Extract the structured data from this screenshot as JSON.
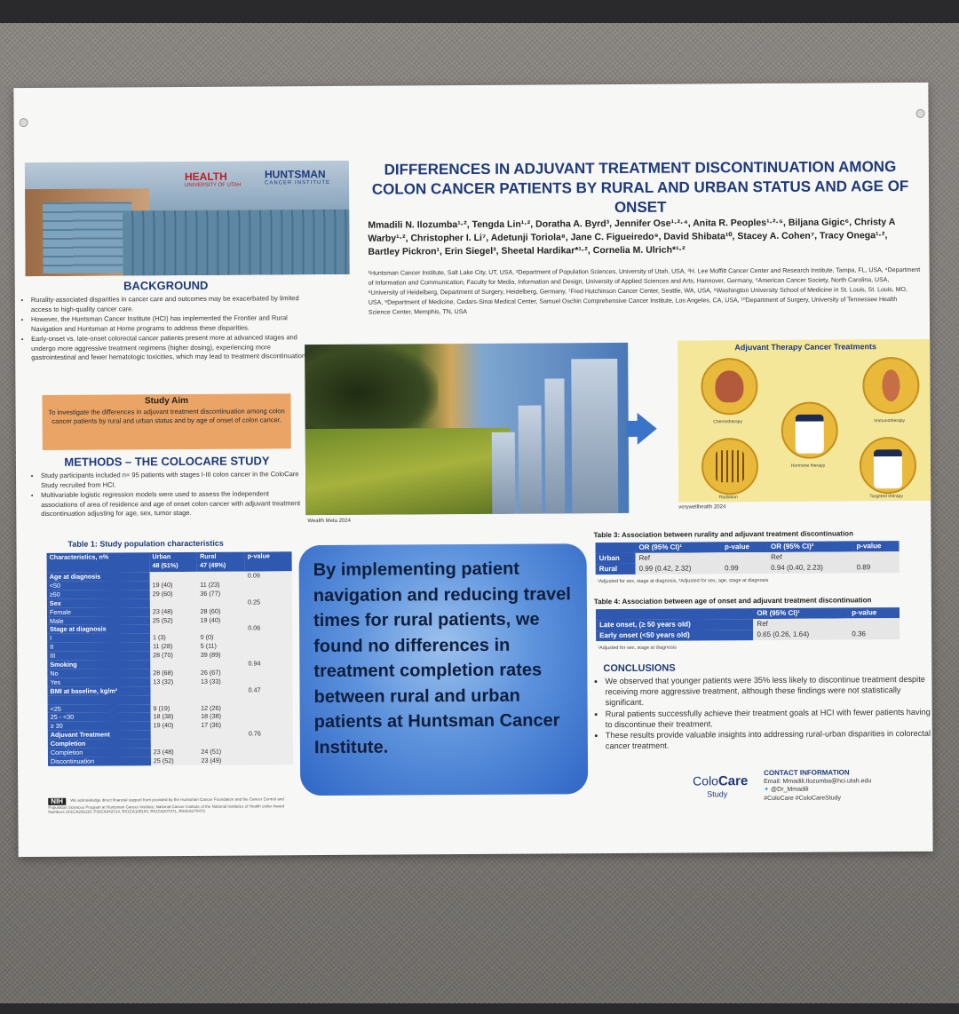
{
  "title": "DIFFERENCES IN ADJUVANT TREATMENT DISCONTINUATION AMONG COLON CANCER PATIENTS BY RURAL AND URBAN STATUS AND AGE OF ONSET",
  "logos": {
    "health": "HEALTH",
    "health_sub": "UNIVERSITY OF UTAH",
    "huntsman": "HUNTSMAN",
    "huntsman_sub": "CANCER INSTITUTE"
  },
  "authors": "Mmadili N. Ilozumba¹·², Tengda Lin¹·², Doratha A. Byrd³, Jennifer Ose¹·²·⁴, Anita R. Peoples¹·²·⁵, Biljana Gigic⁶, Christy A Warby¹·², Christopher I. Li⁷, Adetunji Toriola⁸, Jane C. Figueiredo⁹, David Shibata¹⁰, Stacey A. Cohen⁷, Tracy Onega¹·², Bartley Pickron¹, Erin Siegel³, Sheetal Hardikar*¹·², Cornelia M. Ulrich*¹·²",
  "affiliations": "¹Huntsman Cancer Institute, Salt Lake City, UT, USA, ²Department of Population Sciences, University of Utah, USA, ³H. Lee Moffitt Cancer Center and Research Institute, Tampa, FL, USA, ⁴Department of Information and Communication, Faculty for Media, Information and Design, University of Applied Sciences and Arts, Hannover, Germany, ⁵American Cancer Society, North Carolina, USA, ⁶University of Heidelberg, Department of Surgery, Heidelberg, Germany, ⁷Fred Hutchinson Cancer Center, Seattle, WA, USA, ⁸Washington University School of Medicine in St. Louis, St. Louis, MO, USA, ⁹Department of Medicine, Cedars-Sinai Medical Center, Samuel Oschin Comprehensive Cancer Institute, Los Angeles, CA, USA, ¹⁰Department of Surgery, University of Tennessee Health Science Center, Memphis, TN, USA",
  "background": {
    "heading": "BACKGROUND",
    "bullets": [
      "Rurality-associated disparities in cancer care and outcomes may be exacerbated by limited access to high-quality cancer care.",
      "However, the Huntsman Cancer Institute (HCI) has implemented the Frontier and Rural Navigation and Huntsman at Home programs to address these disparities.",
      "Early-onset vs. late-onset colorectal cancer patients present more at advanced stages and undergo more aggressive treatment regimens (higher dosing), experiencing more gastrointestinal and fewer hematologic toxicities, which may lead to treatment discontinuation."
    ]
  },
  "aim": {
    "heading": "Study Aim",
    "text": "To investigate the differences in adjuvant treatment discontinuation among colon cancer patients by rural and urban status and by age of onset of colon cancer."
  },
  "methods": {
    "heading": "METHODS – THE COLOCARE STUDY",
    "bullets": [
      "Study participants included n= 95 patients with stages I-III colon cancer in the ColoCare Study recruited from HCI.",
      "Multivariable logistic regression models were used to assess the independent associations of area of residence and age of onset colon cancer with adjuvant treatment discontinuation adjusting for age, sex, tumor stage."
    ]
  },
  "table1": {
    "caption": "Table 1: Study population characteristics",
    "header": [
      "Characteristics, n%",
      "Urban\n48 (51%)",
      "Rural\n47 (49%)",
      "p-value"
    ],
    "rows": [
      {
        "label": "Age at diagnosis",
        "bold": true,
        "urban": "",
        "rural": "",
        "p": "0.09"
      },
      {
        "label": "<50",
        "bold": false,
        "urban": "19 (40)",
        "rural": "11 (23)",
        "p": ""
      },
      {
        "label": "≥50",
        "bold": false,
        "urban": "29 (60)",
        "rural": "36 (77)",
        "p": ""
      },
      {
        "label": "Sex",
        "bold": true,
        "urban": "",
        "rural": "",
        "p": "0.25"
      },
      {
        "label": "Female",
        "bold": false,
        "urban": "23 (48)",
        "rural": "28 (60)",
        "p": ""
      },
      {
        "label": "Male",
        "bold": false,
        "urban": "25 (52)",
        "rural": "19 (40)",
        "p": ""
      },
      {
        "label": "Stage at diagnosis",
        "bold": true,
        "urban": "",
        "rural": "",
        "p": "0.06"
      },
      {
        "label": "I",
        "bold": false,
        "urban": "1 (3)",
        "rural": "0 (0)",
        "p": ""
      },
      {
        "label": "II",
        "bold": false,
        "urban": "11 (28)",
        "rural": "5 (11)",
        "p": ""
      },
      {
        "label": "III",
        "bold": false,
        "urban": "28 (70)",
        "rural": "39 (89)",
        "p": ""
      },
      {
        "label": "Smoking",
        "bold": true,
        "urban": "",
        "rural": "",
        "p": "0.94"
      },
      {
        "label": "No",
        "bold": false,
        "urban": "28 (68)",
        "rural": "26 (67)",
        "p": ""
      },
      {
        "label": "Yes",
        "bold": false,
        "urban": "13 (32)",
        "rural": "13 (33)",
        "p": ""
      },
      {
        "label": "BMI at baseline, kg/m²",
        "bold": true,
        "urban": "",
        "rural": "",
        "p": "0.47"
      },
      {
        "label": "",
        "bold": false,
        "urban": "",
        "rural": "",
        "p": ""
      },
      {
        "label": "<25",
        "bold": false,
        "urban": "9 (19)",
        "rural": "12 (26)",
        "p": ""
      },
      {
        "label": "25 - <30",
        "bold": false,
        "urban": "18 (38)",
        "rural": "18 (38)",
        "p": ""
      },
      {
        "label": "≥ 30",
        "bold": false,
        "urban": "19 (40)",
        "rural": "17 (36)",
        "p": ""
      },
      {
        "label": "Adjuvant Treatment",
        "bold": true,
        "urban": "",
        "rural": "",
        "p": "0.76"
      },
      {
        "label": "Completion",
        "bold": true,
        "urban": "",
        "rural": "",
        "p": ""
      },
      {
        "label": "Completion",
        "bold": false,
        "urban": "23 (48)",
        "rural": "24 (51)",
        "p": ""
      },
      {
        "label": "Discontinuation",
        "bold": false,
        "urban": "25 (52)",
        "rural": "23 (49)",
        "p": ""
      }
    ]
  },
  "nih": {
    "badge": "NIH",
    "text": "We acknowledge direct financial support from provided by the Huntsman Cancer Foundation and the Cancer Control and Population Sciences Program at Huntsman Cancer Institute; National Cancer Institute of the National Institutes of Health under Award Numbers U01CA206110, P30CA042014, R01CA189184, R01CA207371, R03CA270473"
  },
  "image_credits": {
    "city": "Wealth Meta 2024",
    "therapy": "verywellhealth 2024"
  },
  "therapy": {
    "heading": "Adjuvant Therapy Cancer Treatments",
    "labels": [
      "Chemotherapy",
      "Immunotherapy",
      "Hormone therapy",
      "Radiation",
      "Targeted therapy"
    ]
  },
  "claim": "By implementing patient navigation and reducing travel times for rural patients, we found no differences in treatment completion rates between rural and urban patients at Huntsman Cancer Institute.",
  "table3": {
    "caption": "Table 3: Association between rurality and adjuvant treatment discontinuation",
    "header": [
      "",
      "OR (95% CI)¹",
      "p-value",
      "OR (95% CI)²",
      "p-value"
    ],
    "rows": [
      [
        "Urban",
        "Ref",
        "",
        "Ref",
        ""
      ],
      [
        "Rural",
        "0.99 (0.42, 2.32)",
        "0.99",
        "0.94 (0.40, 2.23)",
        "0.89"
      ]
    ],
    "footnote": "¹Adjusted for sex, stage at diagnosis, ²Adjusted for sex, age, stage at diagnosis"
  },
  "table4": {
    "caption": "Table 4: Association between age of onset and adjuvant treatment discontinuation",
    "header": [
      "",
      "OR (95% CI)¹",
      "p-value"
    ],
    "rows": [
      [
        "Late onset, (≥ 50 years old)",
        "Ref",
        ""
      ],
      [
        "Early onset (<50 years old)",
        "0.65 (0.26, 1.64)",
        "0.36"
      ]
    ],
    "footnote": "¹Adjusted for sex, stage at diagnosis"
  },
  "conclusions": {
    "heading": "CONCLUSIONS",
    "bullets": [
      "We observed that younger patients were 35% less likely to discontinue treatment despite receiving more aggressive treatment, although these findings were not statistically significant.",
      "Rural patients successfully achieve their treatment goals at HCI with fewer patients having to discontinue their treatment.",
      "These results provide valuable insights into addressing rural-urban disparities in colorectal cancer treatment."
    ]
  },
  "colocare": {
    "colo": "Colo",
    "care": "Care",
    "study": "Study"
  },
  "contact": {
    "heading": "CONTACT INFORMATION",
    "email": "Email: Mmadili.Ilozumba@hci.utah.edu",
    "twitter": "@Dr_Mmadili",
    "hashtags": "#ColoCare #ColoCareStudy"
  },
  "colors": {
    "accent_blue": "#2f58b0",
    "title_blue": "#1f3a7a",
    "aim_orange": "#e9a466",
    "therapy_yellow": "#f5e79a"
  }
}
